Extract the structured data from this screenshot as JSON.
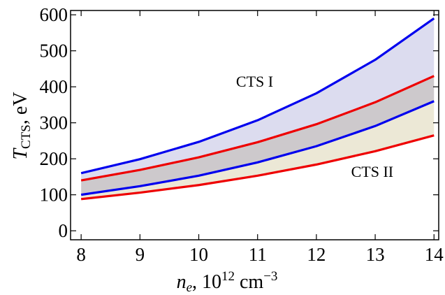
{
  "chart_data": {
    "type": "line",
    "x": [
      8,
      9,
      10,
      11,
      12,
      13,
      14
    ],
    "series": [
      {
        "color": "#0000ee",
        "values": [
          160,
          199,
          247,
          307,
          382,
          475,
          590
        ]
      },
      {
        "color": "#ee0000",
        "values": [
          140,
          169,
          204,
          246,
          296,
          357,
          430
        ]
      },
      {
        "color": "#0000ee",
        "values": [
          100,
          124,
          153,
          190,
          235,
          291,
          360
        ]
      },
      {
        "color": "#ee0000",
        "values": [
          88,
          106,
          127,
          153,
          184,
          221,
          265
        ]
      }
    ],
    "fills": [
      "#dcdcef",
      "#cdc9cc",
      "#ece8d6"
    ],
    "xlim": [
      7.82,
      14.08
    ],
    "ylim": [
      -25,
      612
    ],
    "xticks": [
      8,
      9,
      10,
      11,
      12,
      13,
      14
    ],
    "yticks": [
      0,
      100,
      200,
      300,
      400,
      500,
      600
    ],
    "xlabel": {
      "main": "n",
      "sub": "e",
      "rest": ", 10",
      "sup1": "12",
      "rest2": " cm",
      "sup2": "−3"
    },
    "ylabel": {
      "main": "T",
      "sub": "CTS",
      "rest": ", eV"
    },
    "annotations": [
      {
        "text": "CTS I",
        "x": 10.95,
        "y": 400
      },
      {
        "text": "CTS II",
        "x": 12.95,
        "y": 150
      }
    ]
  }
}
